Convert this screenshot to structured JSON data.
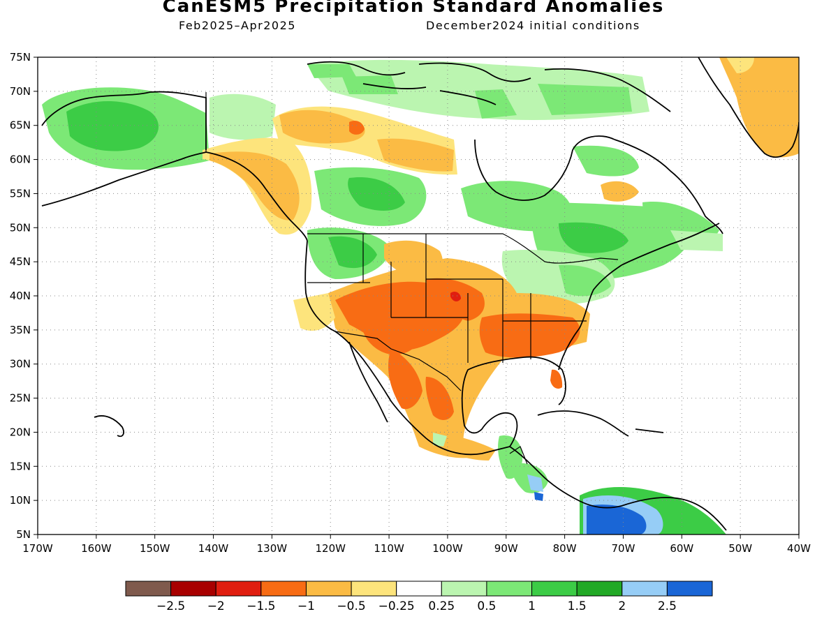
{
  "header": {
    "title": "CanESM5 Precipitation Standard Anomalies",
    "period": "Feb2025–Apr2025",
    "init": "December2024 initial conditions"
  },
  "map": {
    "lat_labels": [
      "75N",
      "70N",
      "65N",
      "60N",
      "55N",
      "50N",
      "45N",
      "40N",
      "35N",
      "30N",
      "25N",
      "20N",
      "15N",
      "10N",
      "5N"
    ],
    "lon_labels": [
      "170W",
      "160W",
      "150W",
      "140W",
      "130W",
      "120W",
      "110W",
      "100W",
      "90W",
      "80W",
      "70W",
      "60W",
      "50W",
      "40W"
    ],
    "lon_range": [
      -170,
      -40
    ],
    "lat_range": [
      5,
      75
    ],
    "grid": "dotted"
  },
  "legend": {
    "colors": [
      "#7f5a4d",
      "#a80000",
      "#e01e10",
      "#f86c14",
      "#fbbb44",
      "#fde47c",
      "#ffffff",
      "#bbf5b0",
      "#7ce876",
      "#3ccc46",
      "#22a926",
      "#96cdf6",
      "#1a66d6"
    ],
    "labels": [
      "−2.5",
      "−2",
      "−1.5",
      "−1",
      "−0.5",
      "−0.25",
      "0.25",
      "0.5",
      "1",
      "1.5",
      "2",
      "2.5"
    ]
  }
}
